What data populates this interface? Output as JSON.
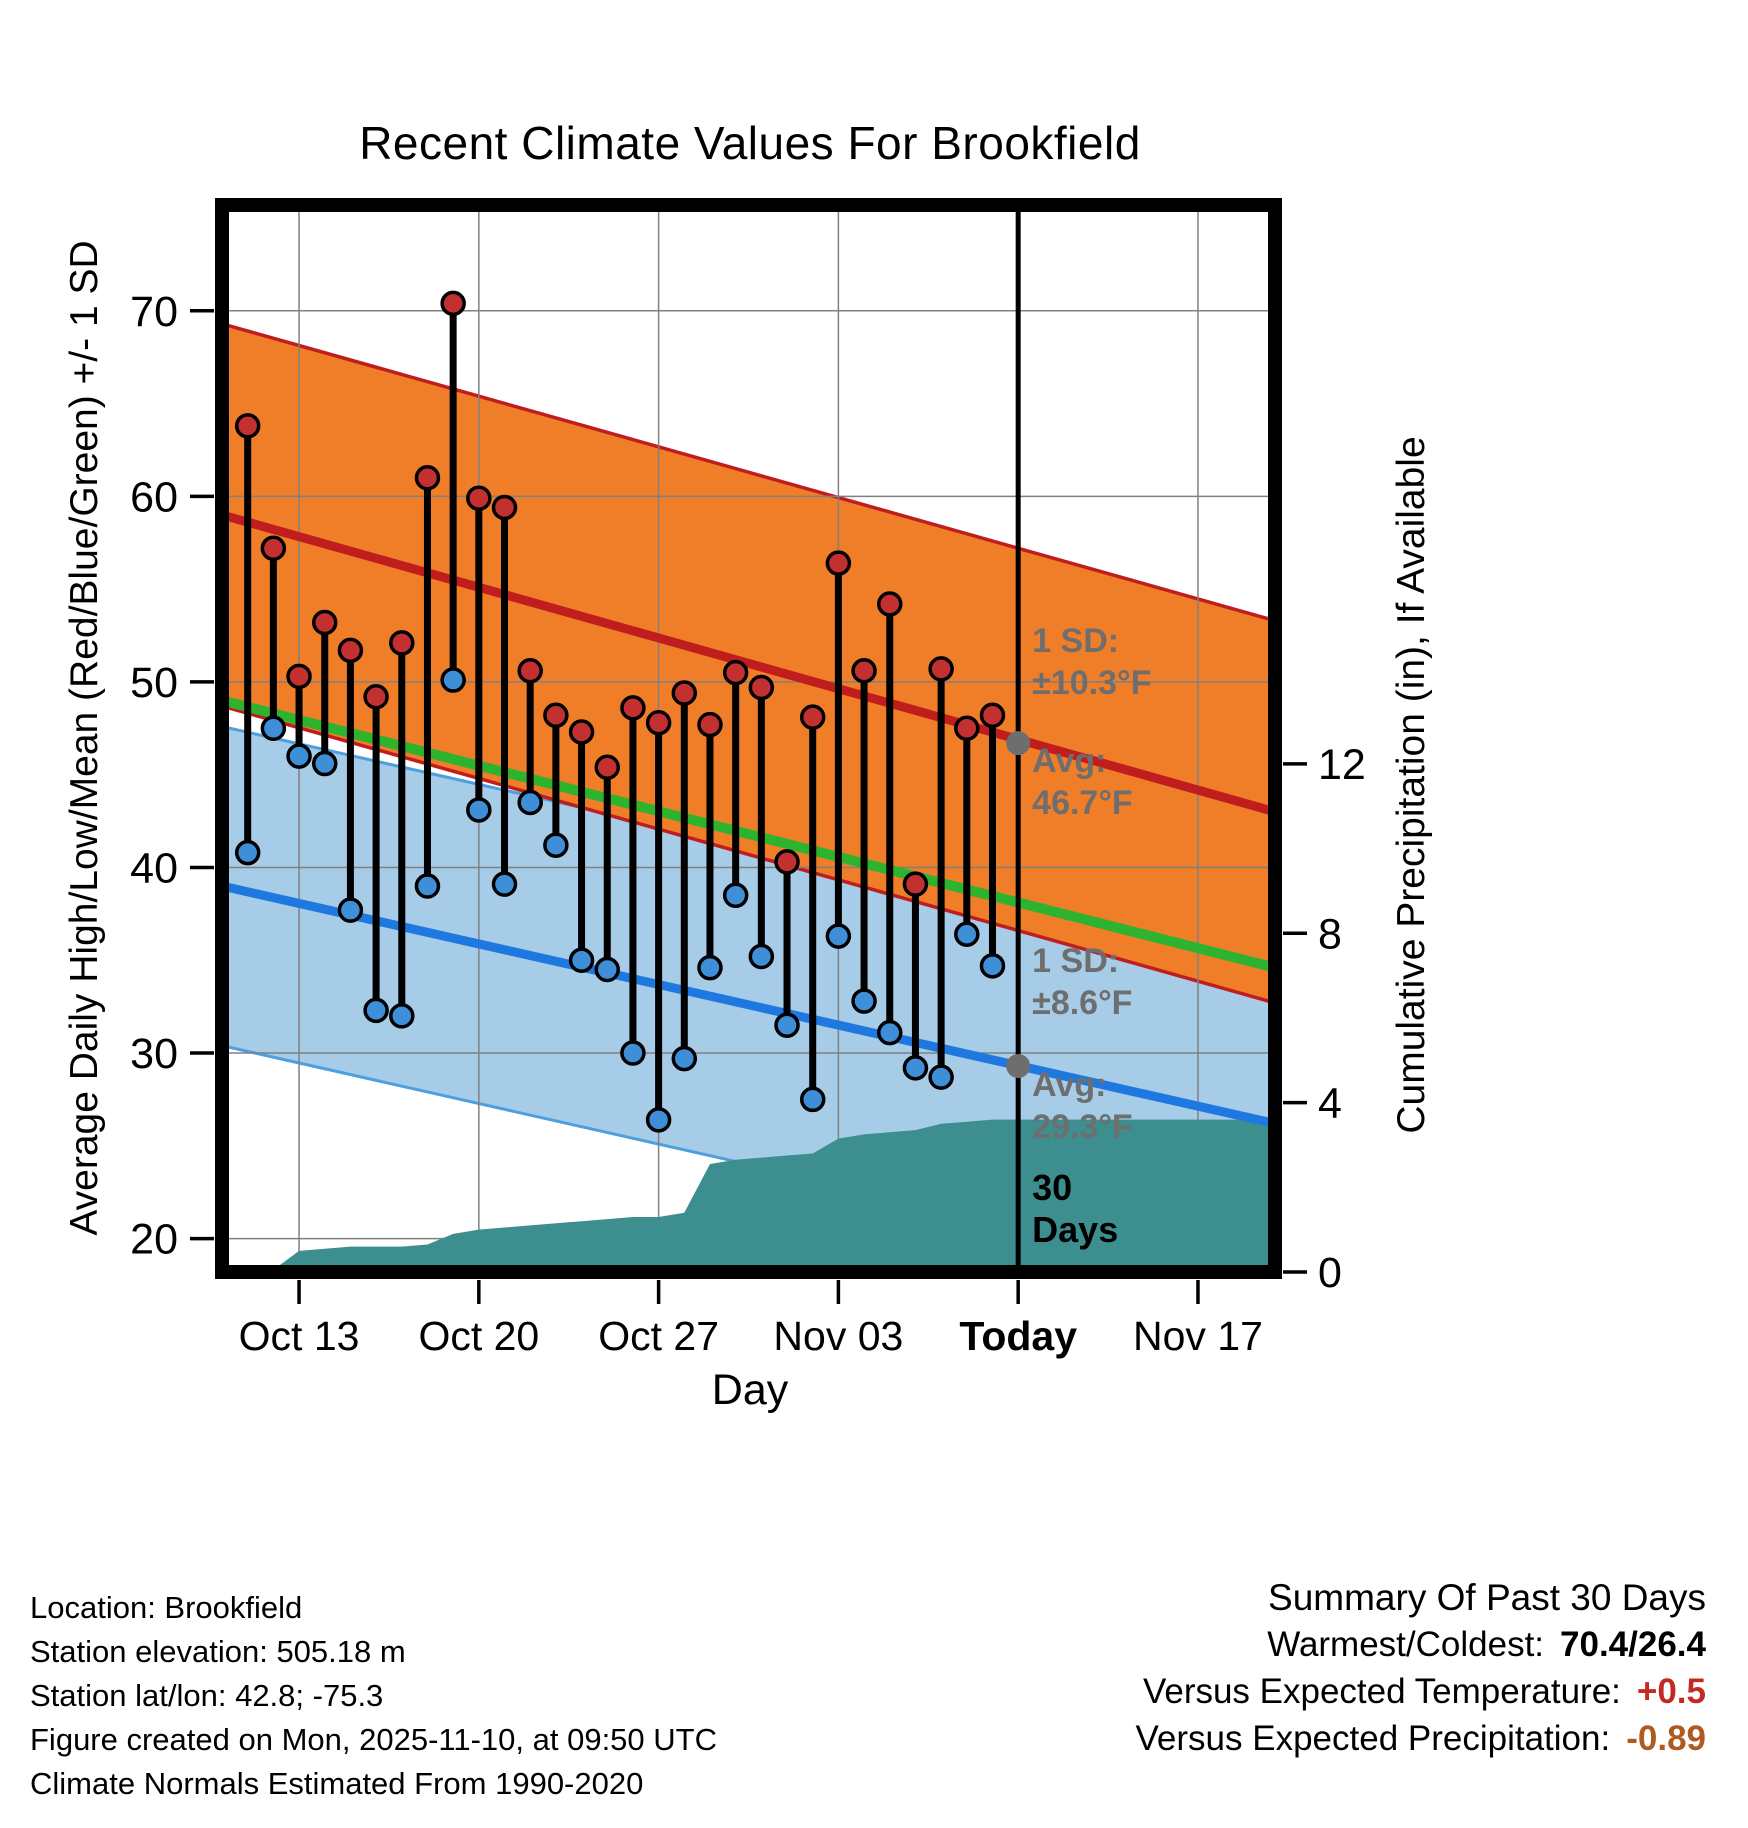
{
  "title": "Recent Climate Values For Brookfield",
  "axes": {
    "left_label": "Average Daily High/Low/Mean (Red/Blue/Green) +/- 1 SD",
    "right_label": "Cumulative Precipitation (in), If Available",
    "x_label": "Day",
    "left_ticks": [
      20,
      30,
      40,
      50,
      60,
      70
    ],
    "right_ticks": [
      0,
      4,
      8,
      12
    ],
    "x_ticks": [
      {
        "label": "Oct 13",
        "day": 3
      },
      {
        "label": "Oct 20",
        "day": 10
      },
      {
        "label": "Oct 27",
        "day": 17
      },
      {
        "label": "Nov 03",
        "day": 24
      },
      {
        "label": "Today",
        "day": 31,
        "bold": true
      },
      {
        "label": "Nov 17",
        "day": 38
      }
    ]
  },
  "chart_data": {
    "type": "line",
    "title": "Recent Climate Values For Brookfield",
    "x_unit": "days after Oct 10",
    "x_range": [
      0,
      41
    ],
    "ylim_temp": [
      18.2,
      75.7
    ],
    "ylim_precip": [
      0,
      25.2
    ],
    "dates": [
      "Oct 11",
      "Oct 12",
      "Oct 13",
      "Oct 14",
      "Oct 15",
      "Oct 16",
      "Oct 17",
      "Oct 18",
      "Oct 19",
      "Oct 20",
      "Oct 21",
      "Oct 22",
      "Oct 23",
      "Oct 24",
      "Oct 25",
      "Oct 26",
      "Oct 27",
      "Oct 28",
      "Oct 29",
      "Oct 30",
      "Oct 31",
      "Nov 01",
      "Nov 02",
      "Nov 03",
      "Nov 04",
      "Nov 05",
      "Nov 06",
      "Nov 07",
      "Nov 08",
      "Nov 09"
    ],
    "days": [
      1,
      2,
      3,
      4,
      5,
      6,
      7,
      8,
      9,
      10,
      11,
      12,
      13,
      14,
      15,
      16,
      17,
      18,
      19,
      20,
      21,
      22,
      23,
      24,
      25,
      26,
      27,
      28,
      29,
      30
    ],
    "highs": [
      63.8,
      57.2,
      50.3,
      53.2,
      51.7,
      49.2,
      52.1,
      61.0,
      70.4,
      59.9,
      59.4,
      50.6,
      48.2,
      47.3,
      45.4,
      48.6,
      47.8,
      49.4,
      47.7,
      50.5,
      49.7,
      40.3,
      48.1,
      56.4,
      50.6,
      54.2,
      39.1,
      50.7,
      47.5,
      48.2
    ],
    "lows": [
      40.8,
      47.5,
      46.0,
      45.6,
      37.7,
      32.3,
      32.0,
      39.0,
      50.1,
      43.1,
      39.1,
      43.5,
      41.2,
      35.0,
      34.5,
      30.0,
      26.4,
      29.7,
      34.6,
      38.5,
      35.2,
      31.5,
      27.5,
      36.3,
      32.8,
      31.1,
      29.2,
      28.7,
      36.4,
      34.7
    ],
    "cumulative_precip": [
      0,
      0.05,
      0.5,
      0.55,
      0.6,
      0.6,
      0.6,
      0.65,
      0.9,
      1.0,
      1.05,
      1.1,
      1.15,
      1.2,
      1.25,
      1.3,
      1.3,
      1.4,
      2.55,
      2.65,
      2.7,
      2.75,
      2.8,
      3.15,
      3.25,
      3.3,
      3.35,
      3.5,
      3.55,
      3.6
    ],
    "normals": {
      "high_mean": {
        "start": 59.0,
        "end": 43.0
      },
      "high_sd": 10.3,
      "low_mean": {
        "start": 39.0,
        "end": 26.2
      },
      "low_sd": 8.6,
      "overall_mean": {
        "start": 49.0,
        "end": 34.6
      }
    },
    "today_day": 31,
    "today_avg_high": 46.7,
    "today_avg_low": 29.3
  },
  "annotations": {
    "high_sd": [
      "1 SD:",
      "±10.3°F"
    ],
    "high_avg": [
      "Avg:",
      "46.7°F"
    ],
    "low_sd": [
      "1 SD:",
      "±8.6°F"
    ],
    "low_avg": [
      "Avg:",
      "29.3°F"
    ],
    "window": [
      "30",
      "Days"
    ],
    "avg_high_value": 46.7,
    "avg_low_value": 29.3
  },
  "colors": {
    "high_band": "#F07E28",
    "high_line": "#C01E1E",
    "high_dot": "#C23030",
    "low_band": "#A7CCE8",
    "low_band_edge": "#4D9FDE",
    "low_line": "#1F78E0",
    "low_dot": "#3F8FD8",
    "mean_line": "#2DB32D",
    "precip_area": "#3D8E8E",
    "gray": "#6E6E6E",
    "grid": "#808080",
    "summary_temp_value": "#C42A24",
    "summary_precip_value": "#AE5A21"
  },
  "footer": {
    "lines": [
      "Location: Brookfield",
      "Station elevation: 505.18 m",
      "Station lat/lon: 42.8; -75.3",
      "Figure created on Mon, 2025-11-10, at 09:50 UTC",
      "Climate Normals Estimated From 1990-2020"
    ]
  },
  "summary": {
    "title": "Summary Of Past 30 Days",
    "warmest": {
      "label": "Warmest/Coldest:",
      "value": "70.4/26.4"
    },
    "vs_temp": {
      "label": "Versus Expected Temperature:",
      "value": "+0.5"
    },
    "vs_precip": {
      "label": "Versus Expected Precipitation:",
      "value": "-0.89"
    }
  }
}
